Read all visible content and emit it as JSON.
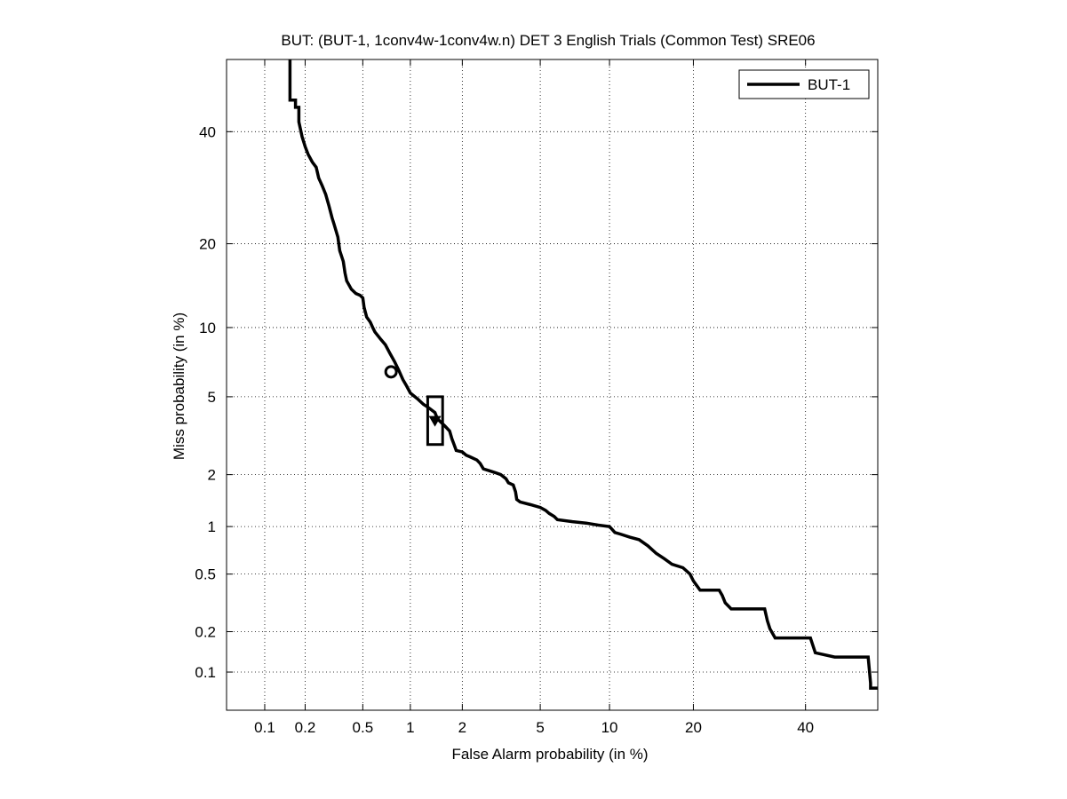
{
  "chart_data": {
    "type": "line",
    "title": "BUT: (BUT-1, 1conv4w-1conv4w.n) DET 3 English Trials (Common Test) SRE06",
    "xlabel": "False Alarm probability (in %)",
    "ylabel": "Miss probability (in %)",
    "scale": "probit (normal deviate)",
    "xlim": [
      0.05,
      55
    ],
    "ylim": [
      0.05,
      55
    ],
    "xticks": [
      0.1,
      0.2,
      0.5,
      1,
      2,
      5,
      10,
      20,
      40
    ],
    "xtick_labels": [
      "0.1",
      "0.2",
      "0.5",
      "1",
      "2",
      "5",
      "10",
      "20",
      "40"
    ],
    "yticks": [
      0.1,
      0.2,
      0.5,
      1,
      2,
      5,
      10,
      20,
      40
    ],
    "ytick_labels": [
      "0.1",
      "0.2",
      "0.5",
      "1",
      "2",
      "5",
      "10",
      "20",
      "40"
    ],
    "grid": true,
    "legend": {
      "position": "top-right",
      "entries": [
        "BUT-1"
      ]
    },
    "series": [
      {
        "name": "BUT-1",
        "color": "#000000",
        "style": "staircase",
        "points": [
          [
            0.155,
            55
          ],
          [
            0.155,
            46.5
          ],
          [
            0.17,
            46.5
          ],
          [
            0.17,
            45
          ],
          [
            0.18,
            45
          ],
          [
            0.18,
            42
          ],
          [
            0.19,
            39
          ],
          [
            0.2,
            37
          ],
          [
            0.21,
            35.5
          ],
          [
            0.225,
            34
          ],
          [
            0.24,
            33
          ],
          [
            0.25,
            31
          ],
          [
            0.265,
            29.5
          ],
          [
            0.28,
            28
          ],
          [
            0.295,
            26
          ],
          [
            0.31,
            24
          ],
          [
            0.32,
            23
          ],
          [
            0.34,
            21
          ],
          [
            0.35,
            19
          ],
          [
            0.37,
            17.5
          ],
          [
            0.38,
            16
          ],
          [
            0.39,
            15
          ],
          [
            0.42,
            14
          ],
          [
            0.45,
            13.5
          ],
          [
            0.48,
            13.3
          ],
          [
            0.5,
            13
          ],
          [
            0.51,
            12
          ],
          [
            0.53,
            11
          ],
          [
            0.56,
            10.5
          ],
          [
            0.58,
            10
          ],
          [
            0.6,
            9.6
          ],
          [
            0.65,
            9
          ],
          [
            0.7,
            8.5
          ],
          [
            0.75,
            7.8
          ],
          [
            0.8,
            7.2
          ],
          [
            0.85,
            6.6
          ],
          [
            0.9,
            6
          ],
          [
            0.95,
            5.6
          ],
          [
            1.0,
            5.2
          ],
          [
            1.1,
            4.9
          ],
          [
            1.2,
            4.6
          ],
          [
            1.25,
            4.5
          ],
          [
            1.3,
            4.4
          ],
          [
            1.4,
            4.2
          ],
          [
            1.45,
            3.9
          ],
          [
            1.5,
            3.8
          ],
          [
            1.6,
            3.6
          ],
          [
            1.7,
            3.4
          ],
          [
            1.75,
            3.1
          ],
          [
            1.8,
            2.9
          ],
          [
            1.85,
            2.7
          ],
          [
            2.0,
            2.65
          ],
          [
            2.1,
            2.55
          ],
          [
            2.2,
            2.5
          ],
          [
            2.4,
            2.4
          ],
          [
            2.5,
            2.3
          ],
          [
            2.6,
            2.15
          ],
          [
            2.8,
            2.1
          ],
          [
            3.0,
            2.05
          ],
          [
            3.2,
            2.0
          ],
          [
            3.4,
            1.9
          ],
          [
            3.5,
            1.8
          ],
          [
            3.7,
            1.75
          ],
          [
            3.8,
            1.6
          ],
          [
            3.85,
            1.45
          ],
          [
            4.0,
            1.4
          ],
          [
            4.5,
            1.35
          ],
          [
            5.0,
            1.3
          ],
          [
            5.3,
            1.25
          ],
          [
            5.5,
            1.2
          ],
          [
            5.8,
            1.15
          ],
          [
            6.0,
            1.1
          ],
          [
            7.0,
            1.07
          ],
          [
            8.0,
            1.05
          ],
          [
            9.0,
            1.02
          ],
          [
            10.0,
            1.0
          ],
          [
            10.5,
            0.92
          ],
          [
            11.0,
            0.9
          ],
          [
            12.0,
            0.86
          ],
          [
            13.0,
            0.83
          ],
          [
            14.0,
            0.76
          ],
          [
            15.0,
            0.68
          ],
          [
            16.0,
            0.63
          ],
          [
            17.0,
            0.58
          ],
          [
            18.5,
            0.55
          ],
          [
            19.5,
            0.5
          ],
          [
            20.0,
            0.45
          ],
          [
            21.0,
            0.39
          ],
          [
            24.0,
            0.39
          ],
          [
            24.5,
            0.36
          ],
          [
            25.0,
            0.32
          ],
          [
            26.0,
            0.29
          ],
          [
            32.0,
            0.29
          ],
          [
            32.5,
            0.24
          ],
          [
            33.0,
            0.21
          ],
          [
            34.0,
            0.18
          ],
          [
            41.0,
            0.18
          ],
          [
            42.0,
            0.14
          ],
          [
            46.0,
            0.13
          ],
          [
            53.0,
            0.13
          ],
          [
            53.5,
            0.082
          ],
          [
            53.5,
            0.075
          ],
          [
            55,
            0.075
          ]
        ]
      }
    ],
    "markers": [
      {
        "shape": "circle",
        "x": 0.76,
        "y": 6.5
      },
      {
        "shape": "triangle",
        "x": 1.4,
        "y": 3.8
      },
      {
        "shape": "rect",
        "x_range": [
          1.27,
          1.55
        ],
        "y_range": [
          2.9,
          5.0
        ]
      }
    ]
  }
}
